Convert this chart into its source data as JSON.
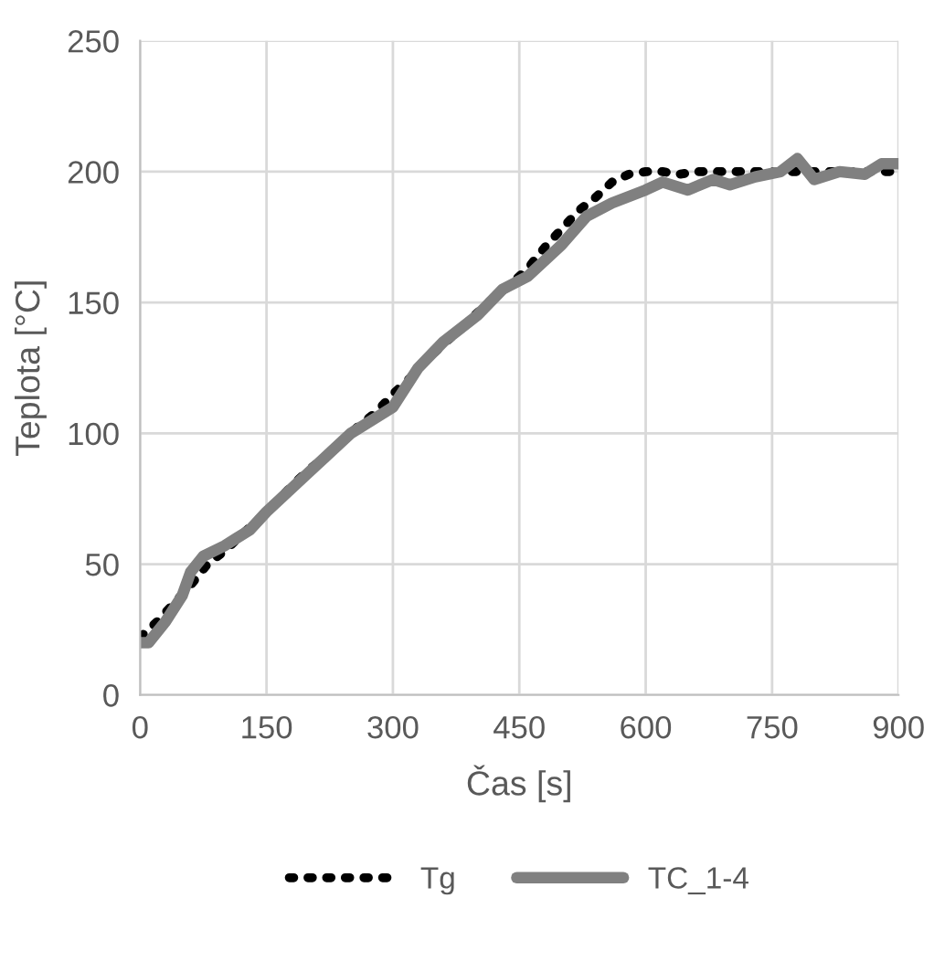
{
  "chart_data": {
    "type": "line",
    "xlabel": "Čas [s]",
    "ylabel": "Teplota [°C]",
    "xlim": [
      0,
      900
    ],
    "xticks": [
      0,
      150,
      300,
      450,
      600,
      750,
      900
    ],
    "ylim": [
      0,
      250
    ],
    "yticks": [
      0,
      50,
      100,
      150,
      200,
      250
    ],
    "grid": true,
    "legend": "bottom",
    "series": [
      {
        "name": "Tg",
        "color": "#000000",
        "line_style": "dotted",
        "x": [
          0,
          20,
          40,
          60,
          80,
          100,
          120,
          140,
          160,
          180,
          200,
          220,
          240,
          260,
          280,
          300,
          320,
          340,
          360,
          380,
          400,
          420,
          440,
          460,
          480,
          500,
          520,
          540,
          560,
          580,
          600,
          620,
          640,
          660,
          680,
          700,
          720,
          740,
          760,
          780,
          800,
          820,
          840,
          860,
          880,
          900
        ],
        "values": [
          22,
          28,
          35,
          42,
          50,
          55,
          61,
          67,
          73,
          80,
          86,
          91,
          97,
          103,
          108,
          115,
          121,
          128,
          134,
          140,
          146,
          152,
          157,
          163,
          171,
          178,
          185,
          190,
          196,
          199,
          200,
          200,
          199,
          200,
          200,
          200,
          200,
          200,
          200,
          200,
          200,
          200,
          200,
          200,
          200,
          200
        ]
      },
      {
        "name": "TC_1-4",
        "color": "#808080",
        "line_style": "solid",
        "x": [
          0,
          10,
          30,
          50,
          60,
          75,
          100,
          130,
          150,
          200,
          250,
          300,
          330,
          360,
          400,
          430,
          460,
          500,
          530,
          560,
          600,
          620,
          650,
          680,
          700,
          730,
          760,
          780,
          800,
          830,
          860,
          880,
          900
        ],
        "values": [
          20,
          20,
          28,
          38,
          47,
          53,
          57,
          63,
          70,
          85,
          100,
          110,
          125,
          135,
          145,
          155,
          160,
          172,
          183,
          188,
          193,
          196,
          193,
          197,
          195,
          198,
          200,
          205,
          197,
          200,
          199,
          203,
          203
        ]
      }
    ]
  }
}
